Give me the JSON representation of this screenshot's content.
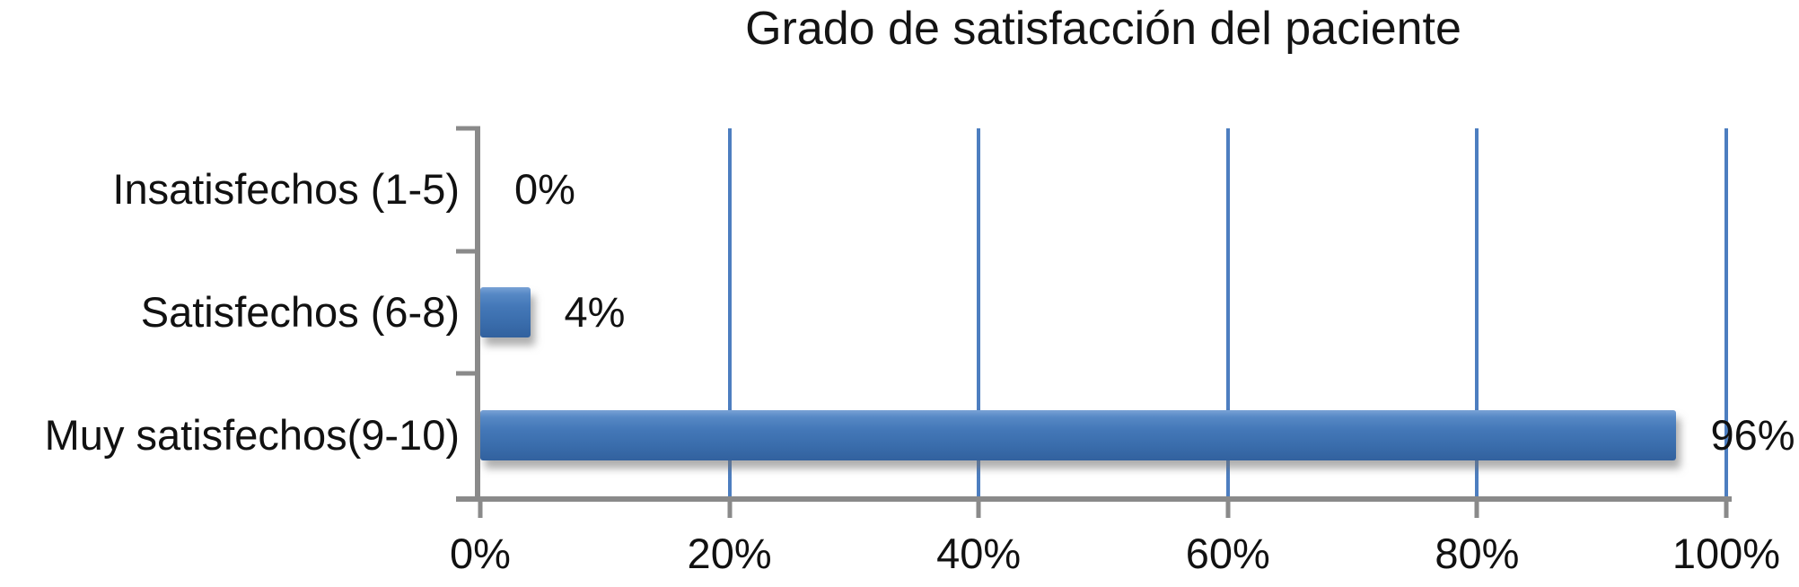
{
  "chart_data": {
    "type": "bar",
    "orientation": "horizontal",
    "title": "Grado de satisfacción del paciente",
    "categories": [
      "Insatisfechos (1-5)",
      "Satisfechos (6-8)",
      "Muy satisfechos(9-10)"
    ],
    "values": [
      0,
      4,
      96
    ],
    "value_labels": [
      "0%",
      "4%",
      "96%"
    ],
    "series": [
      {
        "name": "Grado de satisfacción",
        "values": [
          0,
          4,
          96
        ]
      }
    ],
    "x_axis": {
      "min": 0,
      "max": 100,
      "ticks": [
        0,
        20,
        40,
        60,
        80,
        100
      ],
      "tick_labels": [
        "0%",
        "20%",
        "40%",
        "60%",
        "80%",
        "100%"
      ]
    },
    "grid": true,
    "legend": false,
    "colors": {
      "bar_main": "#4478b8",
      "bar_gradient_top": "#79a2d5",
      "bar_gradient_bottom": "#32619e",
      "gridline": "#4d7ec0",
      "axis": "#8a8a8a",
      "text": "#111111",
      "background": "#ffffff"
    }
  }
}
